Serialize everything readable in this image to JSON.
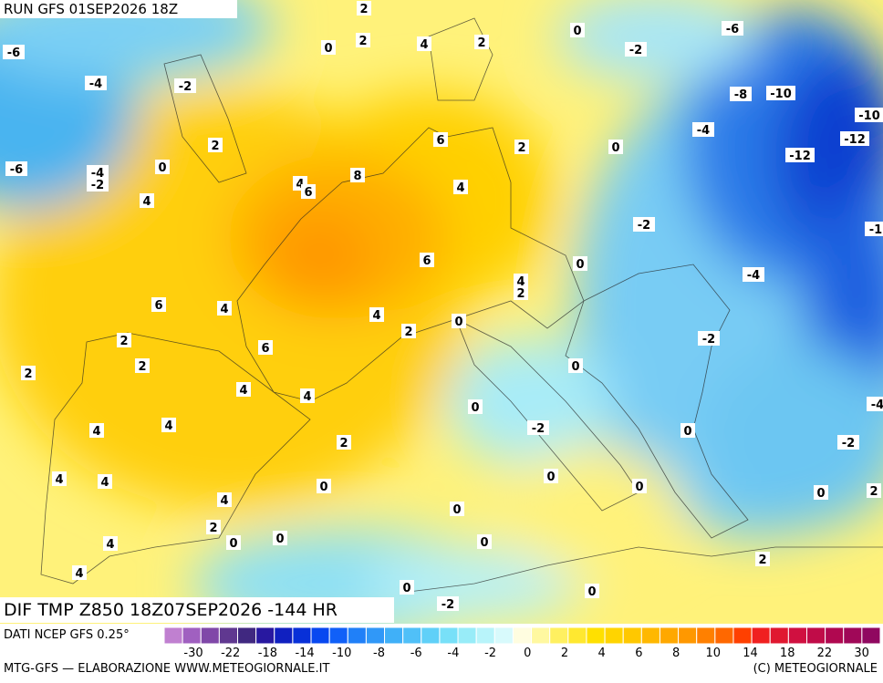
{
  "header": {
    "run": "RUN GFS 01SEP2026 18Z"
  },
  "map": {
    "labels": [
      "2",
      "0",
      "2",
      "4",
      "2",
      "0",
      "-2",
      "-6",
      "-6",
      "-4",
      "-2",
      "-8",
      "-10",
      "-10",
      "-12",
      "-4",
      "6",
      "2",
      "0",
      "-12",
      "2",
      "0",
      "-6",
      "-4",
      "-2",
      "8",
      "4",
      "6",
      "4",
      "4",
      "-2",
      "-1",
      "6",
      "0",
      "-4",
      "4",
      "2",
      "6",
      "4",
      "4",
      "0",
      "2",
      "2",
      "6",
      "-2",
      "2",
      "2",
      "0",
      "4",
      "4",
      "-4",
      "0",
      "4",
      "4",
      "-2",
      "0",
      "2",
      "-2",
      "4",
      "4",
      "0",
      "0",
      "0",
      "4",
      "0",
      "2",
      "0",
      "2",
      "0",
      "0",
      "4",
      "0",
      "4",
      "2",
      "0",
      "0",
      "-2"
    ]
  },
  "footer": {
    "title": "DIF TMP Z850 18Z07SEP2026 -144 HR",
    "source": "DATI NCEP GFS 0.25°",
    "credit": "MTG-GFS — ELABORAZIONE WWW.METEOGIORNALE.IT",
    "copyright": "(C) METEOGIORNALE"
  },
  "colorbar": {
    "labels": [
      "-30",
      "-22",
      "-18",
      "-14",
      "-10",
      "-8",
      "-6",
      "-4",
      "-2",
      "0",
      "2",
      "4",
      "6",
      "8",
      "10",
      "14",
      "18",
      "22",
      "30"
    ]
  }
}
